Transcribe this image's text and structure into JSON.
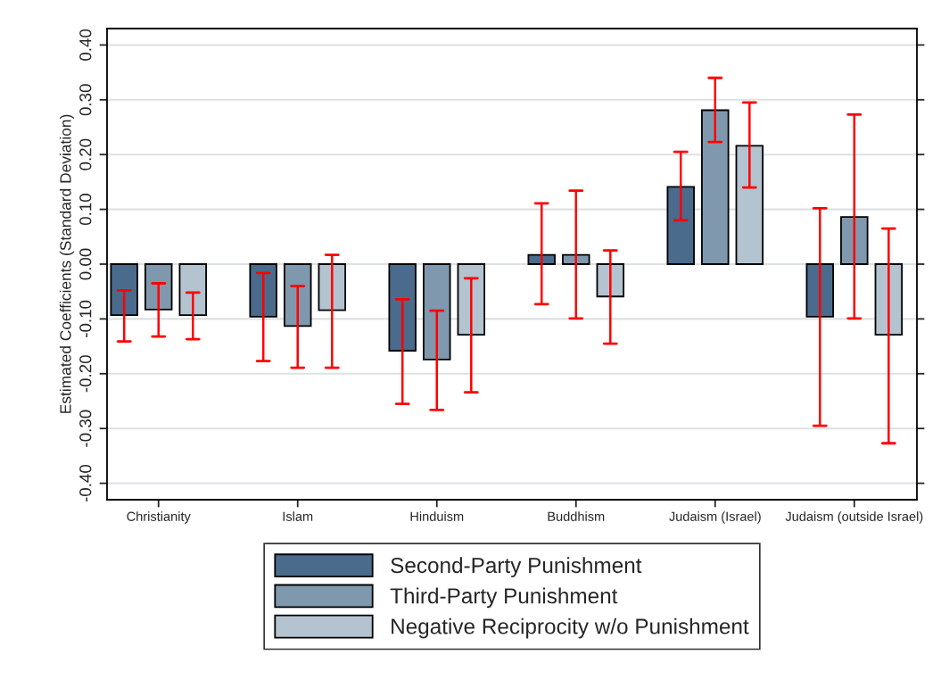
{
  "chart_data": {
    "type": "bar",
    "ylabel": "Estimated Coefficients (Standard Deviation)",
    "categories": [
      "Christianity",
      "Islam",
      "Hinduism",
      "Buddhism",
      "Judaism (Israel)",
      "Judaism (outside Israel)"
    ],
    "series": [
      {
        "name": "Second-Party Punishment",
        "color": "#4a6b8c",
        "values": [
          -0.093,
          -0.096,
          -0.158,
          0.017,
          0.141,
          -0.096
        ],
        "errors": [
          [
            -0.141,
            -0.048
          ],
          [
            -0.177,
            -0.016
          ],
          [
            -0.255,
            -0.064
          ],
          [
            -0.073,
            0.111
          ],
          [
            0.08,
            0.205
          ],
          [
            -0.295,
            0.102
          ]
        ]
      },
      {
        "name": "Third-Party Punishment",
        "color": "#8098ae",
        "values": [
          -0.083,
          -0.113,
          -0.174,
          0.017,
          0.281,
          0.086
        ],
        "errors": [
          [
            -0.132,
            -0.035
          ],
          [
            -0.189,
            -0.04
          ],
          [
            -0.266,
            -0.085
          ],
          [
            -0.099,
            0.134
          ],
          [
            0.223,
            0.34
          ],
          [
            -0.099,
            0.273
          ]
        ]
      },
      {
        "name": "Negative Reciprocity w/o Punishment",
        "color": "#b3c3d0",
        "values": [
          -0.093,
          -0.084,
          -0.129,
          -0.059,
          0.216,
          -0.129
        ],
        "errors": [
          [
            -0.137,
            -0.052
          ],
          [
            -0.189,
            0.017
          ],
          [
            -0.234,
            -0.026
          ],
          [
            -0.145,
            0.025
          ],
          [
            0.14,
            0.295
          ],
          [
            -0.327,
            0.065
          ]
        ]
      }
    ],
    "ylim": [
      -0.43,
      0.43
    ],
    "yticks": [
      {
        "value": -0.4,
        "label": "-0.40"
      },
      {
        "value": -0.3,
        "label": "-0.30"
      },
      {
        "value": -0.2,
        "label": "-0.20"
      },
      {
        "value": -0.1,
        "label": "-0.10"
      },
      {
        "value": 0,
        "label": "0.00"
      },
      {
        "value": 0.1,
        "label": "0.10"
      },
      {
        "value": 0.2,
        "label": "0.20"
      },
      {
        "value": 0.3,
        "label": "0.30"
      },
      {
        "value": 0.4,
        "label": "0.40"
      }
    ],
    "grid": "y",
    "legend": "bottom"
  }
}
